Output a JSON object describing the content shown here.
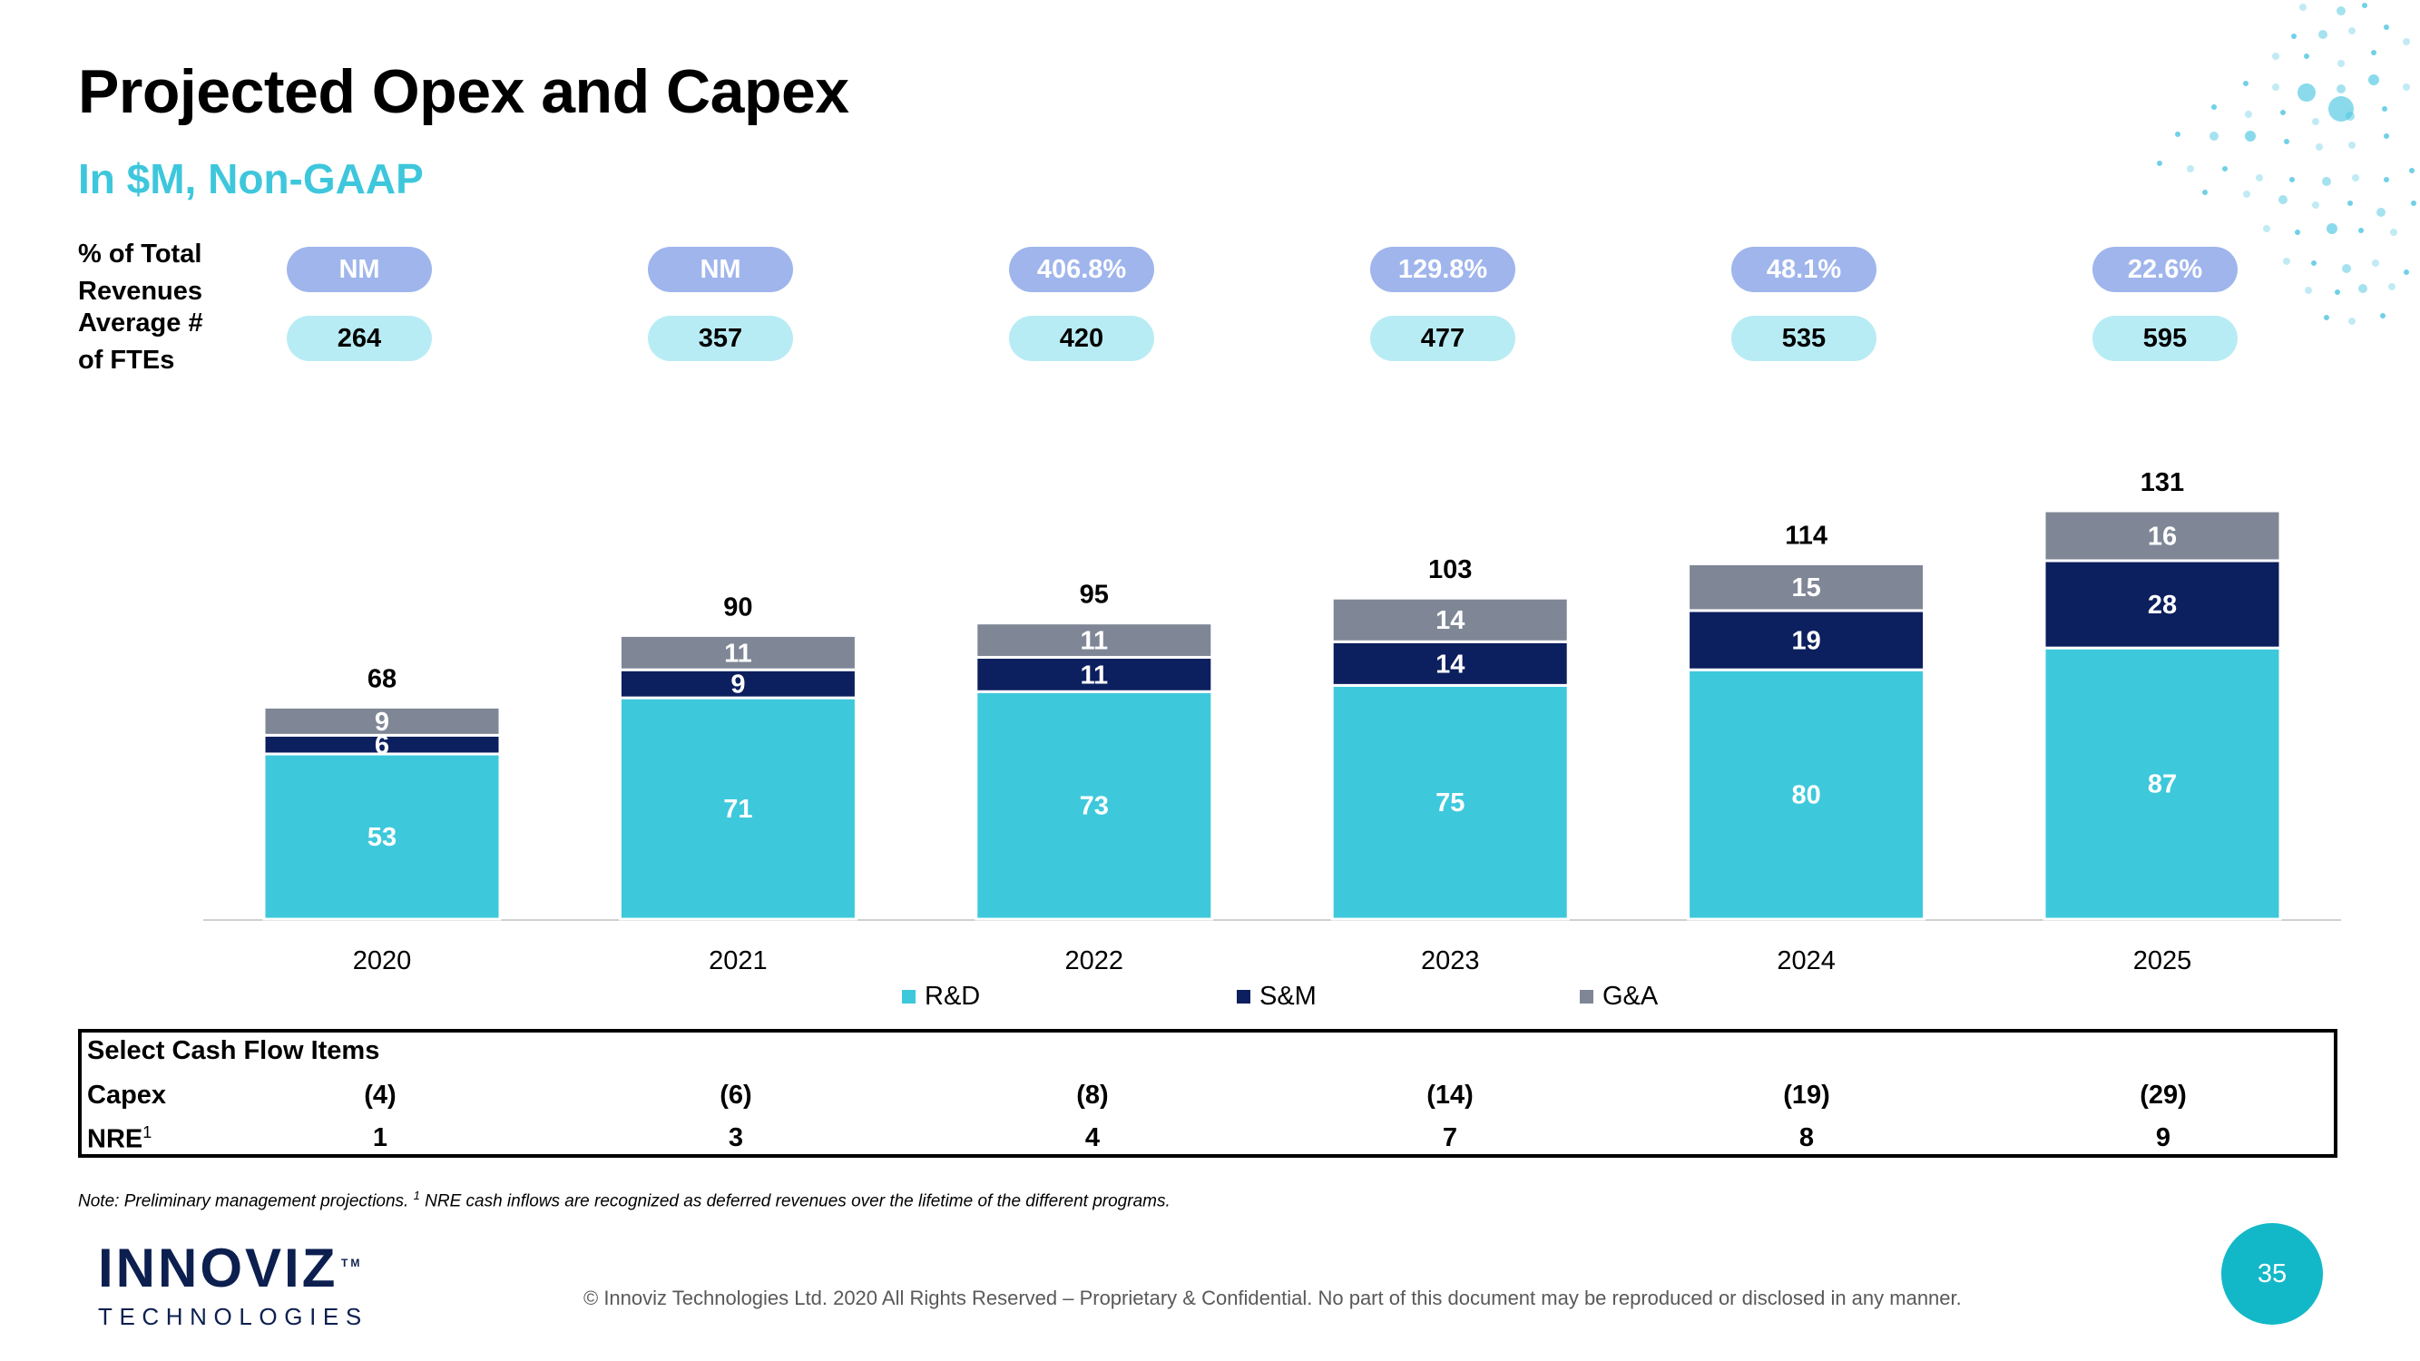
{
  "header": {
    "title": "Projected Opex and Capex",
    "subtitle": "In $M, Non-GAAP"
  },
  "rows": {
    "pct_label_line1": "% of Total",
    "pct_label_line2": "Revenues",
    "fte_label_line1": "Average #",
    "fte_label_line2": "of FTEs",
    "pct_values": [
      "NM",
      "NM",
      "406.8%",
      "129.8%",
      "48.1%",
      "22.6%"
    ],
    "fte_values": [
      "264",
      "357",
      "420",
      "477",
      "535",
      "595"
    ]
  },
  "chart_data": {
    "type": "bar",
    "stacked": true,
    "categories": [
      "2020",
      "2021",
      "2022",
      "2023",
      "2024",
      "2025"
    ],
    "series": [
      {
        "name": "R&D",
        "color": "#3ec8dc",
        "values": [
          53,
          71,
          73,
          75,
          80,
          87
        ]
      },
      {
        "name": "S&M",
        "color": "#0c1f5e",
        "values": [
          6,
          9,
          11,
          14,
          19,
          28
        ]
      },
      {
        "name": "G&A",
        "color": "#7f8796",
        "values": [
          9,
          11,
          11,
          14,
          15,
          16
        ]
      }
    ],
    "totals": [
      68,
      90,
      95,
      103,
      114,
      131
    ],
    "legend_position": "bottom",
    "grid": false
  },
  "cash_flow": {
    "title": "Select Cash Flow Items",
    "capex_label": "Capex",
    "nre_label": "NRE",
    "nre_sup": "1",
    "capex_values": [
      "(4)",
      "(6)",
      "(8)",
      "(14)",
      "(19)",
      "(29)"
    ],
    "nre_values": [
      "1",
      "3",
      "4",
      "7",
      "8",
      "9"
    ]
  },
  "footer": {
    "note_prefix": "Note: Preliminary management projections. ",
    "note_sup": "1",
    "note_rest": " NRE cash inflows are recognized as deferred revenues over the lifetime of the different programs.",
    "copyright": "© Innoviz Technologies Ltd. 2020 All Rights Reserved – Proprietary & Confidential. No part of this document may be reproduced or disclosed in any manner.",
    "page_number": "35",
    "logo_main": "INNOVIZ",
    "logo_tm": "TM",
    "logo_sub": "TECHNOLOGIES"
  },
  "colors": {
    "accent": "#3ec7dc",
    "navy": "#0c1f5e",
    "gray": "#7f8796",
    "pct_pill": "#9fb5ec",
    "fte_pill": "#b8ecf4"
  }
}
